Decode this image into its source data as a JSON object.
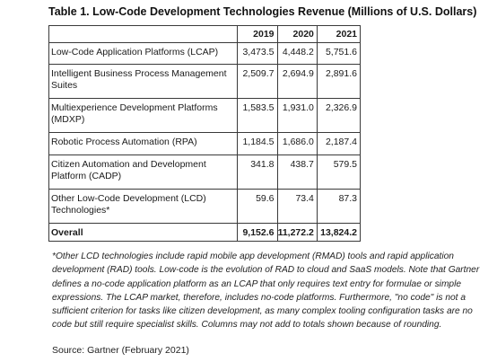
{
  "title": "Table 1. Low-Code Development Technologies Revenue (Millions of U.S. Dollars)",
  "table": {
    "headers": [
      "",
      "2019",
      "2020",
      "2021"
    ],
    "rows": [
      {
        "label": "Low-Code Application Platforms (LCAP)",
        "v2019": "3,473.5",
        "v2020": "4,448.2",
        "v2021": "5,751.6"
      },
      {
        "label": "Intelligent Business Process Management Suites",
        "v2019": "2,509.7",
        "v2020": "2,694.9",
        "v2021": "2,891.6"
      },
      {
        "label": "Multiexperience Development Platforms (MDXP)",
        "v2019": "1,583.5",
        "v2020": "1,931.0",
        "v2021": "2,326.9"
      },
      {
        "label": "Robotic Process Automation (RPA)",
        "v2019": "1,184.5",
        "v2020": "1,686.0",
        "v2021": "2,187.4"
      },
      {
        "label": "Citizen Automation and Development Platform (CADP)",
        "v2019": "341.8",
        "v2020": "438.7",
        "v2021": "579.5"
      },
      {
        "label": "Other Low-Code Development (LCD) Technologies*",
        "v2019": "59.6",
        "v2020": "73.4",
        "v2021": "87.3"
      }
    ],
    "total": {
      "label": "Overall",
      "v2019": "9,152.6",
      "v2020": "11,272.2",
      "v2021": "13,824.2"
    }
  },
  "footnote": "*Other LCD technologies include rapid mobile app development (RMAD) tools and rapid application development (RAD) tools. Low-code is the evolution of RAD to cloud and SaaS models. Note that Gartner defines a no-code application platform as an LCAP that only requires text entry for formulae or simple expressions. The LCAP market, therefore, includes no-code platforms. Furthermore, \"no code\" is not a sufficient criterion for tasks like citizen development, as many complex tooling configuration tasks are no code but still require specialist skills. Columns may not add to totals shown because of rounding.",
  "source": "Source: Gartner (February 2021)"
}
